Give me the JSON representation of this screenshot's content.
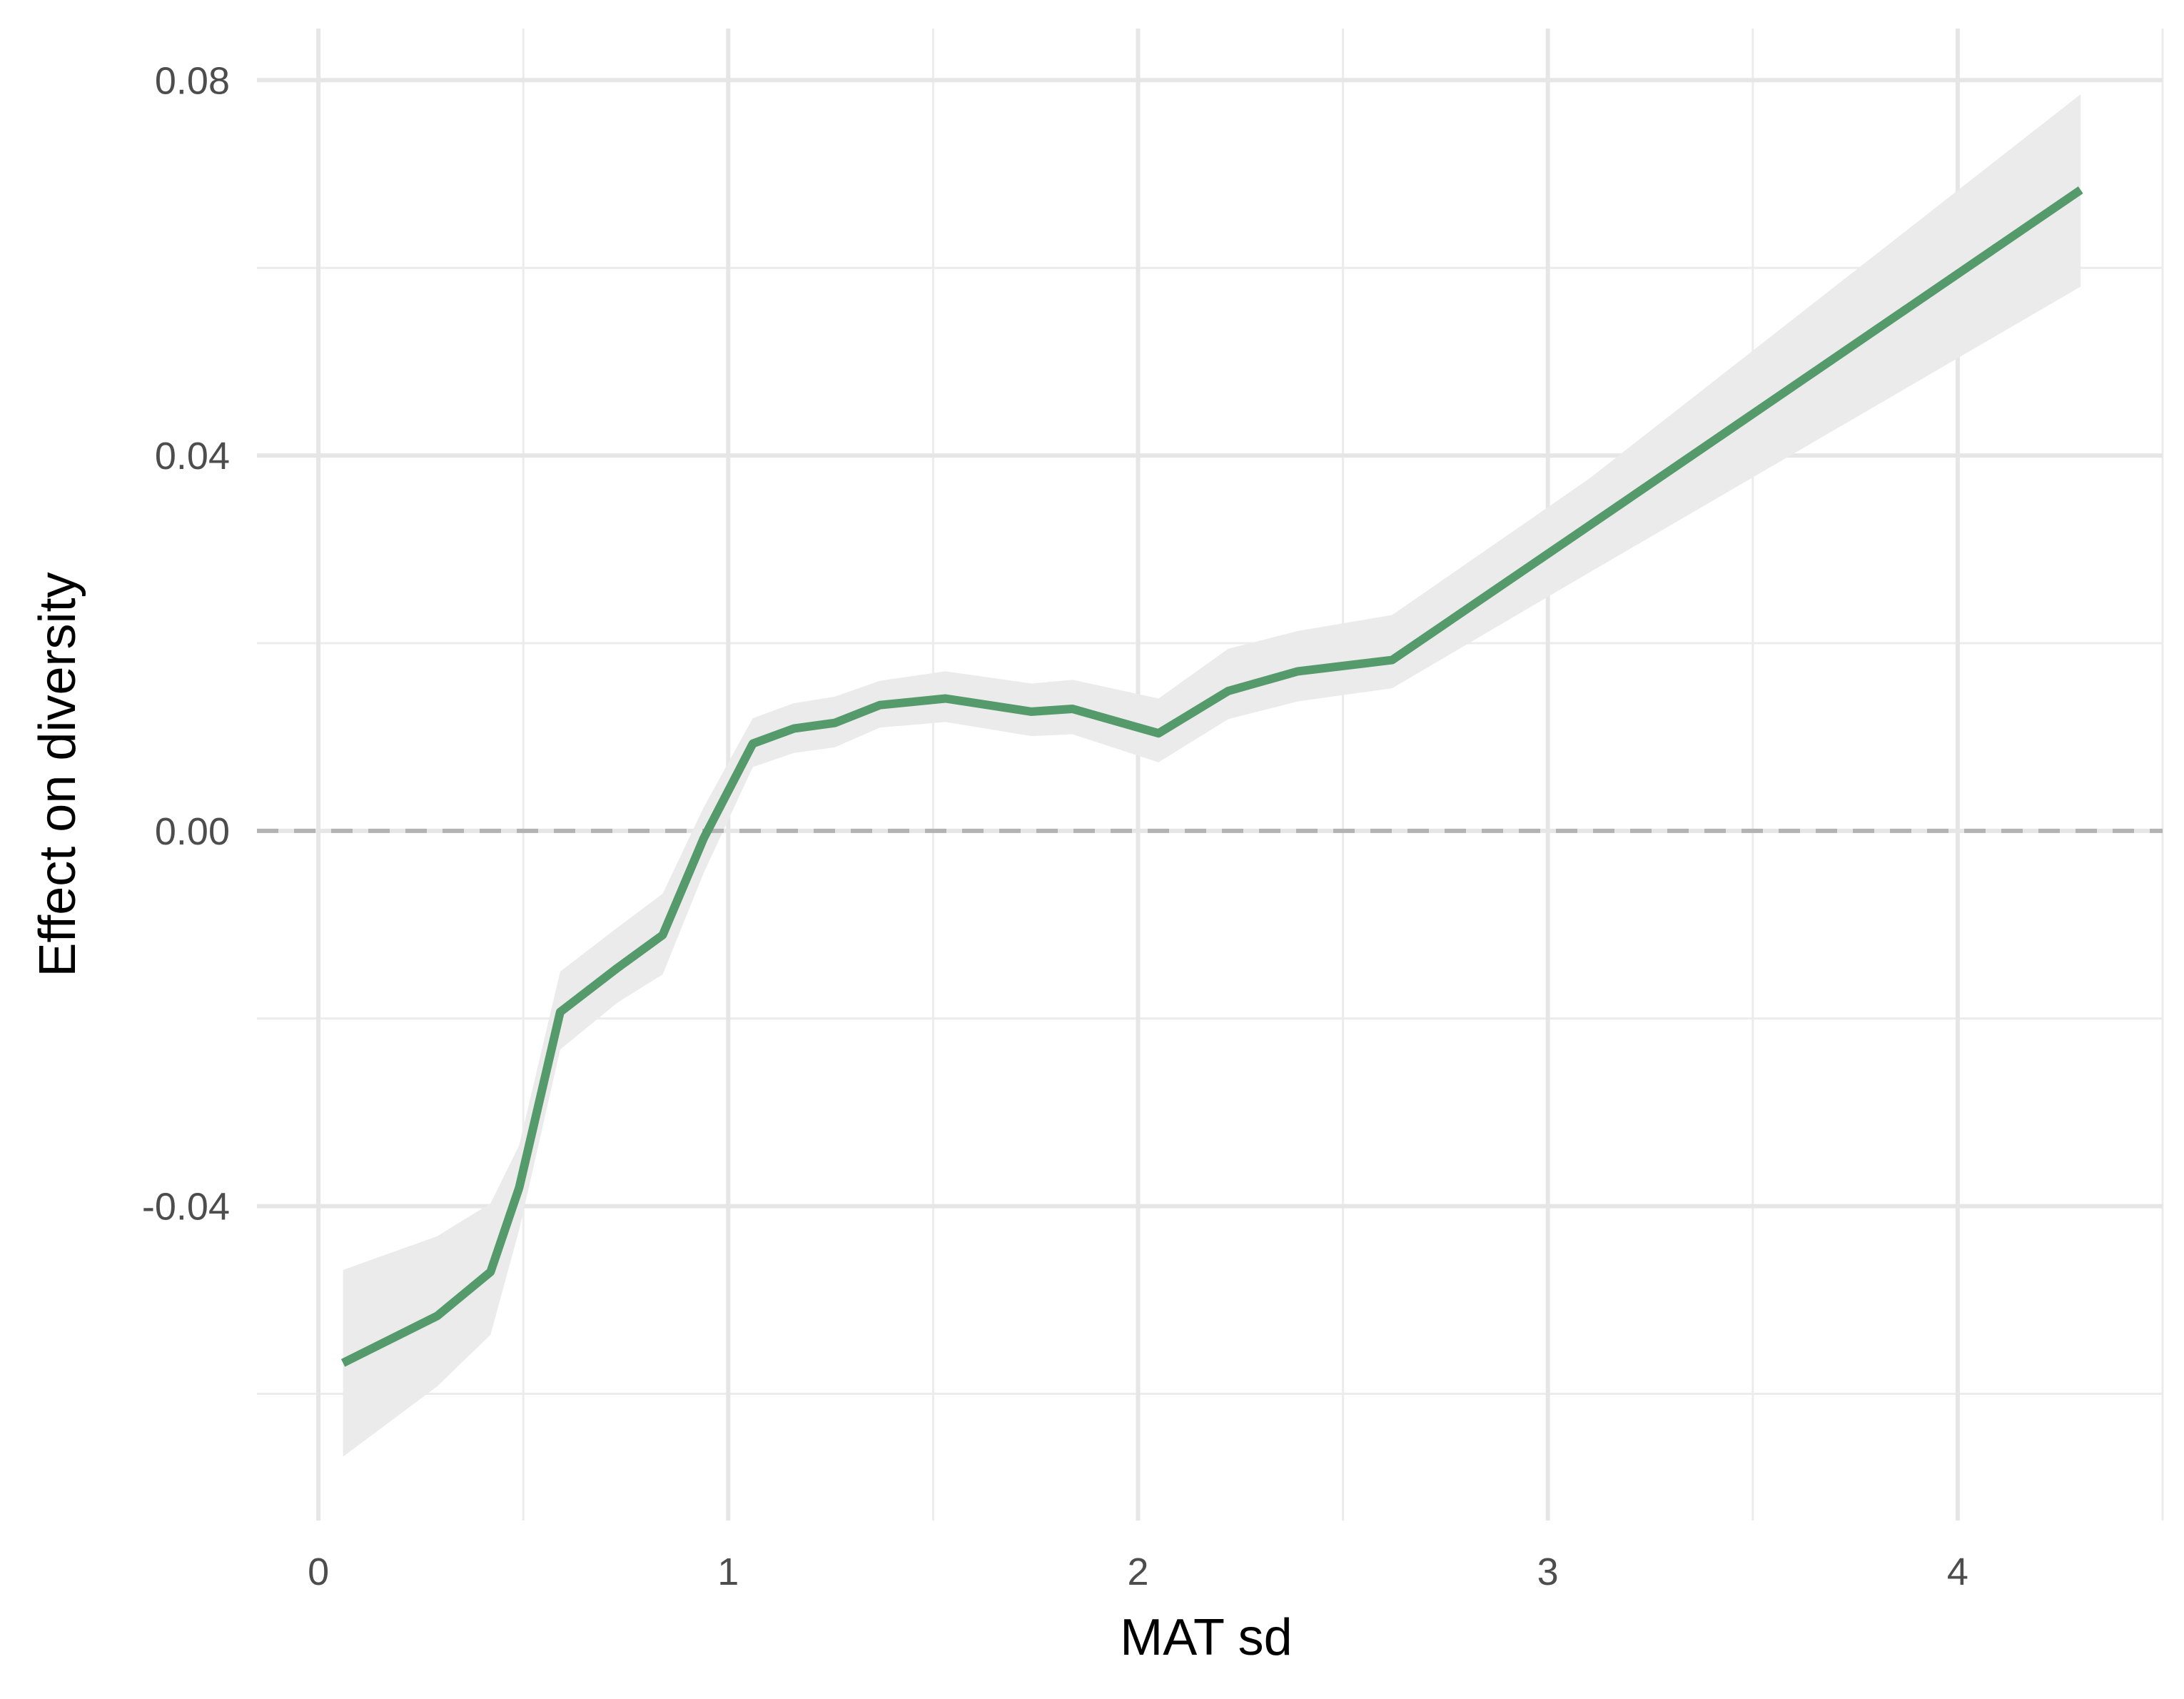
{
  "chart_data": {
    "type": "line",
    "title": "",
    "xlabel": "MAT sd",
    "ylabel": "Effect on diversity",
    "xlim": [
      -0.15,
      4.5
    ],
    "ylim": [
      -0.0735,
      0.0855
    ],
    "x_ticks": [
      0,
      1,
      2,
      3,
      4
    ],
    "x_tick_labels": [
      "0",
      "1",
      "2",
      "3",
      "4"
    ],
    "x_minor_ticks": [
      0.5,
      1.5,
      2.5,
      3.5,
      4.5
    ],
    "y_ticks": [
      -0.04,
      0.0,
      0.04,
      0.08
    ],
    "y_tick_labels": [
      "-0.04",
      "0.00",
      "0.04",
      "0.08"
    ],
    "y_minor_ticks": [
      -0.06,
      -0.02,
      0.02,
      0.06
    ],
    "grid": true,
    "legend": "none",
    "reference_line": {
      "y": 0,
      "style": "dashed",
      "color": "#b3b3b3"
    },
    "series": [
      {
        "line_color": "#559a6a",
        "ribbon_color": "#ebebeb",
        "x": [
          0.06,
          0.29,
          0.42,
          0.49,
          0.59,
          0.73,
          0.84,
          0.94,
          1.06,
          1.16,
          1.26,
          1.37,
          1.53,
          1.74,
          1.84,
          2.05,
          2.22,
          2.39,
          2.62,
          3.1,
          4.3
        ],
        "y": [
          -0.0567,
          -0.0517,
          -0.047,
          -0.038,
          -0.0193,
          -0.0146,
          -0.0111,
          -0.0008,
          0.0093,
          0.0109,
          0.0115,
          0.0134,
          0.0141,
          0.0127,
          0.013,
          0.0104,
          0.0149,
          0.017,
          0.0182,
          0.0325,
          0.0683
        ],
        "lower": [
          -0.0667,
          -0.0592,
          -0.0537,
          -0.0425,
          -0.0233,
          -0.0183,
          -0.0153,
          -0.0045,
          0.0068,
          0.0083,
          0.0089,
          0.011,
          0.0116,
          0.0101,
          0.0103,
          0.0073,
          0.0119,
          0.0138,
          0.0152,
          0.0275,
          0.058
        ],
        "upper": [
          -0.0468,
          -0.0432,
          -0.0397,
          -0.0335,
          -0.015,
          -0.0103,
          -0.0067,
          0.0025,
          0.012,
          0.0136,
          0.0143,
          0.016,
          0.017,
          0.0157,
          0.0161,
          0.0141,
          0.0194,
          0.0213,
          0.023,
          0.0375,
          0.0785
        ]
      }
    ]
  }
}
